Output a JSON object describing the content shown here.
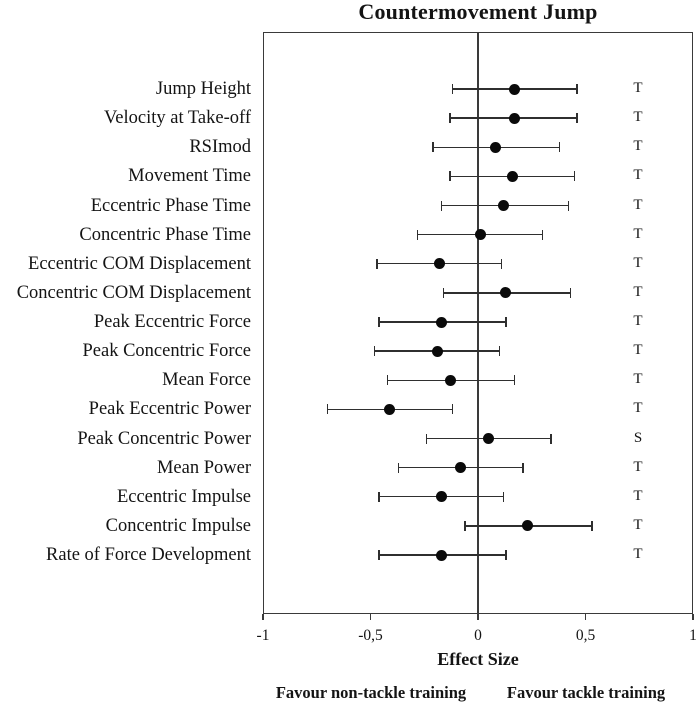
{
  "title": "Countermovement Jump",
  "colors": {
    "background": "#ffffff",
    "text": "#141414",
    "lines": "#2f2f2f",
    "frame": "#3a3a3a",
    "marker": "#0a0a0a"
  },
  "chart_data": {
    "type": "scatter",
    "variant": "forest-plot",
    "title": "Countermovement Jump",
    "xlabel": "Effect Size",
    "xlim": [
      -1,
      1
    ],
    "reference_line_x": 0,
    "grid": false,
    "legend": "none",
    "x_ticks": [
      {
        "value": -1,
        "label": "-1"
      },
      {
        "value": -0.5,
        "label": "-0,5"
      },
      {
        "value": 0,
        "label": "0"
      },
      {
        "value": 0.5,
        "label": "0,5"
      },
      {
        "value": 1,
        "label": "1"
      }
    ],
    "rows": [
      {
        "label": "Jump Height",
        "effect": 0.17,
        "ci_low": -0.12,
        "ci_high": 0.46,
        "annotation": "T"
      },
      {
        "label": "Velocity at Take-off",
        "effect": 0.17,
        "ci_low": -0.13,
        "ci_high": 0.46,
        "annotation": "T"
      },
      {
        "label": "RSImod",
        "effect": 0.08,
        "ci_low": -0.21,
        "ci_high": 0.38,
        "annotation": "T"
      },
      {
        "label": "Movement Time",
        "effect": 0.16,
        "ci_low": -0.13,
        "ci_high": 0.45,
        "annotation": "T"
      },
      {
        "label": "Eccentric Phase Time",
        "effect": 0.12,
        "ci_low": -0.17,
        "ci_high": 0.42,
        "annotation": "T"
      },
      {
        "label": "Concentric Phase Time",
        "effect": 0.01,
        "ci_low": -0.28,
        "ci_high": 0.3,
        "annotation": "T"
      },
      {
        "label": "Eccentric COM Displacement",
        "effect": -0.18,
        "ci_low": -0.47,
        "ci_high": 0.11,
        "annotation": "T"
      },
      {
        "label": "Concentric COM Displacement",
        "effect": 0.13,
        "ci_low": -0.16,
        "ci_high": 0.43,
        "annotation": "T"
      },
      {
        "label": "Peak Eccentric Force",
        "effect": -0.17,
        "ci_low": -0.46,
        "ci_high": 0.13,
        "annotation": "T"
      },
      {
        "label": "Peak Concentric Force",
        "effect": -0.19,
        "ci_low": -0.48,
        "ci_high": 0.1,
        "annotation": "T"
      },
      {
        "label": "Mean Force",
        "effect": -0.13,
        "ci_low": -0.42,
        "ci_high": 0.17,
        "annotation": "T"
      },
      {
        "label": "Peak Eccentric Power",
        "effect": -0.41,
        "ci_low": -0.7,
        "ci_high": -0.12,
        "annotation": "T"
      },
      {
        "label": "Peak Concentric Power",
        "effect": 0.05,
        "ci_low": -0.24,
        "ci_high": 0.34,
        "annotation": "S"
      },
      {
        "label": "Mean Power",
        "effect": -0.08,
        "ci_low": -0.37,
        "ci_high": 0.21,
        "annotation": "T"
      },
      {
        "label": "Eccentric Impulse",
        "effect": -0.17,
        "ci_low": -0.46,
        "ci_high": 0.12,
        "annotation": "T"
      },
      {
        "label": "Concentric Impulse",
        "effect": 0.23,
        "ci_low": -0.06,
        "ci_high": 0.53,
        "annotation": "T"
      },
      {
        "label": "Rate of Force Development",
        "effect": -0.17,
        "ci_low": -0.46,
        "ci_high": 0.13,
        "annotation": "T"
      }
    ],
    "footer_left": "Favour non-tackle training",
    "footer_right": "Favour tackle training"
  }
}
